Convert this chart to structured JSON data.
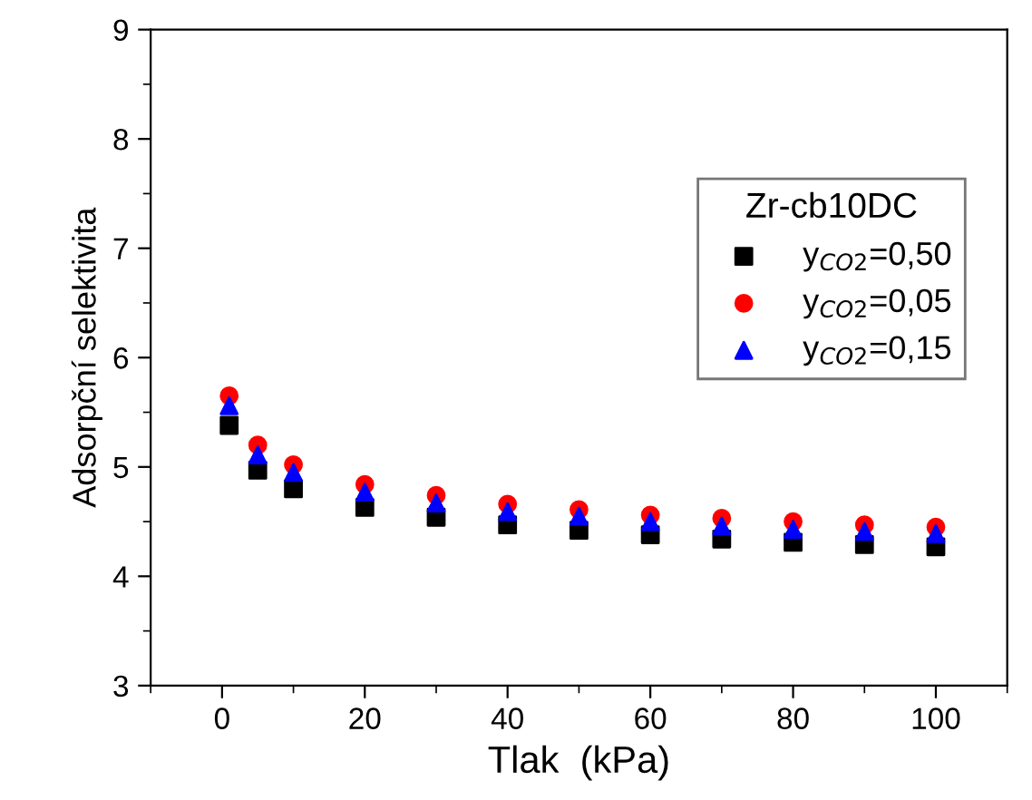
{
  "chart_data": {
    "type": "scatter",
    "xlabel": "Tlak  (kPa)",
    "ylabel": "Adsorpční selektivita",
    "legend_title": "Zr-cb10DC",
    "x": [
      1,
      5,
      10,
      20,
      30,
      40,
      50,
      60,
      70,
      80,
      90,
      100
    ],
    "series": [
      {
        "name": "y$_{CO2}$=0,50",
        "color": "#000000",
        "marker": "square",
        "values": [
          5.38,
          4.97,
          4.8,
          4.63,
          4.54,
          4.47,
          4.42,
          4.38,
          4.34,
          4.31,
          4.29,
          4.27
        ]
      },
      {
        "name": "y$_{CO2}$=0,05",
        "color": "#ff0000",
        "marker": "circle",
        "values": [
          5.65,
          5.2,
          5.02,
          4.84,
          4.74,
          4.66,
          4.61,
          4.56,
          4.53,
          4.5,
          4.47,
          4.45
        ]
      },
      {
        "name": "y$_{CO2}$=0,15",
        "color": "#0000ff",
        "marker": "triangle",
        "values": [
          5.56,
          5.11,
          4.95,
          4.77,
          4.67,
          4.59,
          4.55,
          4.5,
          4.46,
          4.43,
          4.41,
          4.39
        ]
      }
    ],
    "xlim": [
      -10,
      110
    ],
    "xticks": [
      0,
      20,
      40,
      60,
      80,
      100
    ],
    "ylim": [
      3,
      9
    ],
    "yticks": [
      3,
      4,
      5,
      6,
      7,
      8,
      9
    ],
    "grid": false,
    "legend": "right"
  }
}
